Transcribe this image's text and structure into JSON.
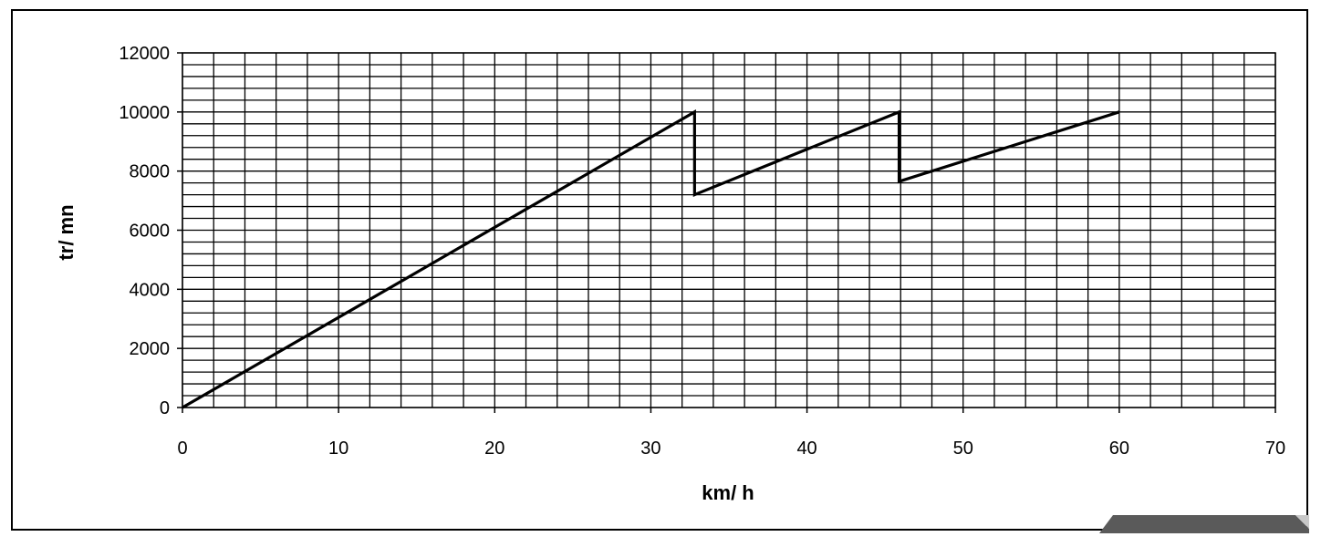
{
  "chart_data": {
    "type": "line",
    "title": "",
    "xlabel": "km/ h",
    "ylabel": "tr/ mn",
    "xlim": [
      0,
      70
    ],
    "ylim": [
      0,
      12000
    ],
    "x_ticks": [
      0,
      10,
      20,
      30,
      40,
      50,
      60,
      70
    ],
    "y_ticks": [
      0,
      2000,
      4000,
      6000,
      8000,
      10000,
      12000
    ],
    "x_tick_labels": [
      "0",
      "10",
      "20",
      "30",
      "40",
      "50",
      "60",
      "70"
    ],
    "y_tick_labels": [
      "0",
      "2000",
      "4000",
      "6000",
      "8000",
      "10000",
      "12000"
    ],
    "grid": true,
    "legend": "none",
    "series": [
      {
        "x": [
          0,
          32.8,
          32.8,
          45.9,
          45.9,
          60
        ],
        "y": [
          0,
          10000,
          7200,
          10000,
          7650,
          10000
        ]
      }
    ],
    "colors": {
      "line": "#000000",
      "grid": "#000000",
      "frame": "#000000",
      "corner_tab": "#5a5a5a"
    }
  }
}
